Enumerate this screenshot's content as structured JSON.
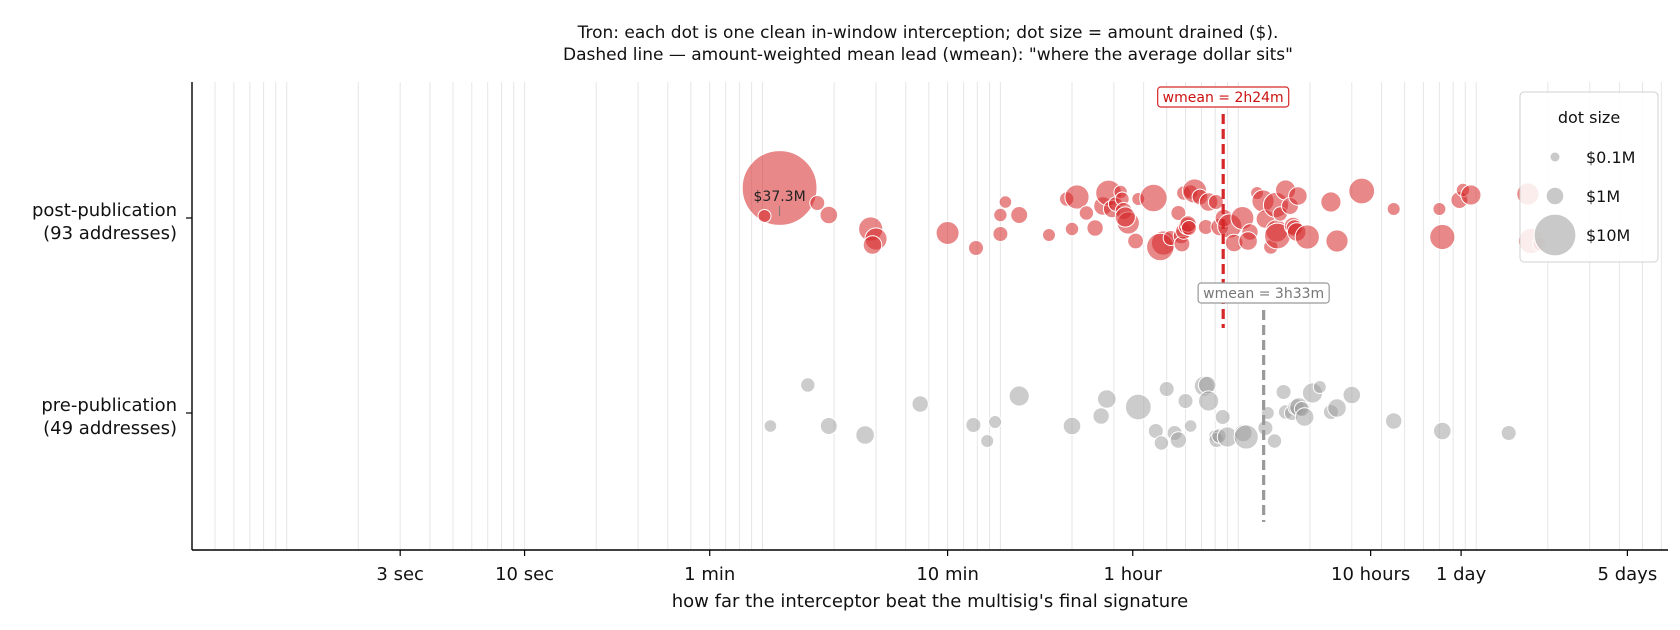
{
  "chart_data": {
    "type": "scatter",
    "title_lines": [
      "Tron: each dot is one clean in-window interception; dot size = amount drained ($).",
      "Dashed line — amount-weighted mean lead (wmean): \"where the average dollar sits\""
    ],
    "xlabel": "how far the interceptor beat the multisig's final signature",
    "x_scale": "log",
    "x_unit": "seconds",
    "xlim": [
      0.4,
      640000
    ],
    "x_ticks": [
      {
        "value": 3,
        "label": "3 sec"
      },
      {
        "value": 10,
        "label": "10 sec"
      },
      {
        "value": 60,
        "label": "1 min"
      },
      {
        "value": 600,
        "label": "10 min"
      },
      {
        "value": 3600,
        "label": "1 hour"
      },
      {
        "value": 36000,
        "label": "10 hours"
      },
      {
        "value": 86400,
        "label": "1 day"
      },
      {
        "value": 432000,
        "label": "5 days"
      }
    ],
    "grid": "vertical, log minor",
    "categories": [
      {
        "key": "post",
        "label_line1": "post-publication",
        "label_line2": "(93 addresses)"
      },
      {
        "key": "pre",
        "label_line1": "pre-publication",
        "label_line2": "(49 addresses)"
      }
    ],
    "legend": {
      "title": "dot size",
      "position": "top-right",
      "entries": [
        {
          "label": "$0.1M",
          "amount_musd": 0.1
        },
        {
          "label": "$1M",
          "amount_musd": 1
        },
        {
          "label": "$10M",
          "amount_musd": 10
        }
      ]
    },
    "series": [
      {
        "key": "post",
        "color": "#d62728",
        "wmean_seconds": 8640,
        "wmean_label": "wmean = 2h24m",
        "points": [
          {
            "lead": 118,
            "jitter": 0.3,
            "amount_musd": 37.3
          },
          {
            "lead": 102,
            "jitter": 0.02,
            "amount_musd": 0.35
          },
          {
            "lead": 170,
            "jitter": 0.15,
            "amount_musd": 0.6
          },
          {
            "lead": 190,
            "jitter": 0.03,
            "amount_musd": 1.0
          },
          {
            "lead": 285,
            "jitter": -0.11,
            "amount_musd": 2.5
          },
          {
            "lead": 300,
            "jitter": -0.21,
            "amount_musd": 2.0
          },
          {
            "lead": 290,
            "jitter": -0.27,
            "amount_musd": 1.2
          },
          {
            "lead": 600,
            "jitter": -0.15,
            "amount_musd": 2.2
          },
          {
            "lead": 790,
            "jitter": -0.3,
            "amount_musd": 0.6
          },
          {
            "lead": 1000,
            "jitter": 0.03,
            "amount_musd": 0.4
          },
          {
            "lead": 1050,
            "jitter": 0.16,
            "amount_musd": 0.3
          },
          {
            "lead": 1200,
            "jitter": 0.03,
            "amount_musd": 0.9
          },
          {
            "lead": 1000,
            "jitter": -0.16,
            "amount_musd": 0.6
          },
          {
            "lead": 1600,
            "jitter": -0.17,
            "amount_musd": 0.35
          },
          {
            "lead": 1900,
            "jitter": 0.19,
            "amount_musd": 0.5
          },
          {
            "lead": 2100,
            "jitter": 0.21,
            "amount_musd": 2.5
          },
          {
            "lead": 2000,
            "jitter": -0.11,
            "amount_musd": 0.4
          },
          {
            "lead": 2300,
            "jitter": 0.05,
            "amount_musd": 0.5
          },
          {
            "lead": 2500,
            "jitter": -0.1,
            "amount_musd": 0.8
          },
          {
            "lead": 2700,
            "jitter": 0.12,
            "amount_musd": 1.2
          },
          {
            "lead": 2850,
            "jitter": 0.25,
            "amount_musd": 3.0
          },
          {
            "lead": 2950,
            "jitter": 0.09,
            "amount_musd": 1.0
          },
          {
            "lead": 3050,
            "jitter": 0.14,
            "amount_musd": 0.5
          },
          {
            "lead": 3200,
            "jitter": 0.26,
            "amount_musd": 0.4
          },
          {
            "lead": 3250,
            "jitter": 0.19,
            "amount_musd": 0.45
          },
          {
            "lead": 3300,
            "jitter": 0.07,
            "amount_musd": 0.9
          },
          {
            "lead": 3450,
            "jitter": -0.05,
            "amount_musd": 2.0
          },
          {
            "lead": 3350,
            "jitter": 0.01,
            "amount_musd": 1.5
          },
          {
            "lead": 3700,
            "jitter": -0.23,
            "amount_musd": 0.7
          },
          {
            "lead": 3800,
            "jitter": 0.19,
            "amount_musd": 0.35
          },
          {
            "lead": 4400,
            "jitter": 0.2,
            "amount_musd": 3.5
          },
          {
            "lead": 4850,
            "jitter": -0.25,
            "amount_musd": 2.5
          },
          {
            "lead": 4700,
            "jitter": -0.29,
            "amount_musd": 3.5
          },
          {
            "lead": 5200,
            "jitter": -0.2,
            "amount_musd": 0.6
          },
          {
            "lead": 5600,
            "jitter": 0.05,
            "amount_musd": 0.6
          },
          {
            "lead": 5900,
            "jitter": 0.25,
            "amount_musd": 0.5
          },
          {
            "lead": 5750,
            "jitter": -0.18,
            "amount_musd": 0.7
          },
          {
            "lead": 5800,
            "jitter": -0.26,
            "amount_musd": 0.7
          },
          {
            "lead": 5900,
            "jitter": -0.13,
            "amount_musd": 0.8
          },
          {
            "lead": 6100,
            "jitter": -0.08,
            "amount_musd": 1.0
          },
          {
            "lead": 6150,
            "jitter": -0.06,
            "amount_musd": 0.8
          },
          {
            "lead": 6300,
            "jitter": 0.26,
            "amount_musd": 0.5
          },
          {
            "lead": 6550,
            "jitter": 0.27,
            "amount_musd": 2.5
          },
          {
            "lead": 6200,
            "jitter": -0.1,
            "amount_musd": 0.6
          },
          {
            "lead": 6900,
            "jitter": 0.21,
            "amount_musd": 0.7
          },
          {
            "lead": 7300,
            "jitter": -0.09,
            "amount_musd": 0.6
          },
          {
            "lead": 7500,
            "jitter": 0.16,
            "amount_musd": 1.2
          },
          {
            "lead": 8050,
            "jitter": 0.16,
            "amount_musd": 0.6
          },
          {
            "lead": 8350,
            "jitter": -0.09,
            "amount_musd": 1.0
          },
          {
            "lead": 8700,
            "jitter": 0.0,
            "amount_musd": 1.0
          },
          {
            "lead": 9200,
            "jitter": -0.08,
            "amount_musd": 2.5
          },
          {
            "lead": 9600,
            "jitter": -0.25,
            "amount_musd": 1.0
          },
          {
            "lead": 10400,
            "jitter": 0.0,
            "amount_musd": 2.2
          },
          {
            "lead": 11200,
            "jitter": -0.14,
            "amount_musd": 0.8
          },
          {
            "lead": 11000,
            "jitter": -0.23,
            "amount_musd": 1.2
          },
          {
            "lead": 12000,
            "jitter": 0.25,
            "amount_musd": 0.35
          },
          {
            "lead": 12700,
            "jitter": 0.17,
            "amount_musd": 2.0
          },
          {
            "lead": 13000,
            "jitter": -0.01,
            "amount_musd": 1.2
          },
          {
            "lead": 13700,
            "jitter": -0.29,
            "amount_musd": 0.5
          },
          {
            "lead": 14400,
            "jitter": 0.13,
            "amount_musd": 2.8
          },
          {
            "lead": 14500,
            "jitter": -0.13,
            "amount_musd": 2.0
          },
          {
            "lead": 14600,
            "jitter": -0.18,
            "amount_musd": 3.0
          },
          {
            "lead": 15000,
            "jitter": 0.04,
            "amount_musd": 0.5
          },
          {
            "lead": 15800,
            "jitter": 0.28,
            "amount_musd": 1.5
          },
          {
            "lead": 16500,
            "jitter": 0.12,
            "amount_musd": 0.9
          },
          {
            "lead": 17000,
            "jitter": -0.08,
            "amount_musd": 1.0
          },
          {
            "lead": 17200,
            "jitter": -0.1,
            "amount_musd": 0.8
          },
          {
            "lead": 17600,
            "jitter": -0.14,
            "amount_musd": 1.2
          },
          {
            "lead": 17800,
            "jitter": 0.22,
            "amount_musd": 1.2
          },
          {
            "lead": 19500,
            "jitter": -0.19,
            "amount_musd": 2.5
          },
          {
            "lead": 24500,
            "jitter": 0.16,
            "amount_musd": 1.5
          },
          {
            "lead": 26000,
            "jitter": -0.23,
            "amount_musd": 2.0
          },
          {
            "lead": 33000,
            "jitter": 0.27,
            "amount_musd": 3.0
          },
          {
            "lead": 45000,
            "jitter": 0.09,
            "amount_musd": 0.35
          },
          {
            "lead": 70000,
            "jitter": 0.09,
            "amount_musd": 0.35
          },
          {
            "lead": 72000,
            "jitter": -0.19,
            "amount_musd": 2.8
          },
          {
            "lead": 85000,
            "jitter": 0.18,
            "amount_musd": 0.9
          },
          {
            "lead": 88000,
            "jitter": 0.28,
            "amount_musd": 0.4
          },
          {
            "lead": 95000,
            "jitter": 0.23,
            "amount_musd": 1.5
          },
          {
            "lead": 165000,
            "jitter": 0.24,
            "amount_musd": 2.0
          },
          {
            "lead": 170000,
            "jitter": -0.23,
            "amount_musd": 2.8
          },
          {
            "lead": 185000,
            "jitter": -0.26,
            "amount_musd": 0.5
          }
        ]
      },
      {
        "key": "pre",
        "color": "#999999",
        "wmean_seconds": 12780,
        "wmean_label": "wmean = 3h33m",
        "points": [
          {
            "lead": 108,
            "jitter": -0.13,
            "amount_musd": 0.3
          },
          {
            "lead": 155,
            "jitter": 0.28,
            "amount_musd": 0.5
          },
          {
            "lead": 190,
            "jitter": -0.13,
            "amount_musd": 0.9
          },
          {
            "lead": 270,
            "jitter": -0.22,
            "amount_musd": 1.2
          },
          {
            "lead": 460,
            "jitter": 0.09,
            "amount_musd": 0.8
          },
          {
            "lead": 770,
            "jitter": -0.12,
            "amount_musd": 0.6
          },
          {
            "lead": 880,
            "jitter": -0.28,
            "amount_musd": 0.35
          },
          {
            "lead": 950,
            "jitter": -0.09,
            "amount_musd": 0.35
          },
          {
            "lead": 1200,
            "jitter": 0.17,
            "amount_musd": 1.5
          },
          {
            "lead": 2000,
            "jitter": -0.13,
            "amount_musd": 1.0
          },
          {
            "lead": 2650,
            "jitter": -0.03,
            "amount_musd": 0.8
          },
          {
            "lead": 2800,
            "jitter": 0.14,
            "amount_musd": 1.2
          },
          {
            "lead": 3800,
            "jitter": 0.06,
            "amount_musd": 3.0
          },
          {
            "lead": 4500,
            "jitter": -0.18,
            "amount_musd": 0.6
          },
          {
            "lead": 4750,
            "jitter": -0.3,
            "amount_musd": 0.5
          },
          {
            "lead": 5000,
            "jitter": 0.24,
            "amount_musd": 0.6
          },
          {
            "lead": 5400,
            "jitter": -0.2,
            "amount_musd": 0.6
          },
          {
            "lead": 5600,
            "jitter": -0.27,
            "amount_musd": 0.8
          },
          {
            "lead": 6000,
            "jitter": 0.12,
            "amount_musd": 0.6
          },
          {
            "lead": 6300,
            "jitter": -0.13,
            "amount_musd": 0.3
          },
          {
            "lead": 7200,
            "jitter": 0.27,
            "amount_musd": 1.5
          },
          {
            "lead": 7400,
            "jitter": 0.28,
            "amount_musd": 1.0
          },
          {
            "lead": 7500,
            "jitter": 0.12,
            "amount_musd": 1.5
          },
          {
            "lead": 8000,
            "jitter": -0.23,
            "amount_musd": 0.35
          },
          {
            "lead": 8100,
            "jitter": -0.27,
            "amount_musd": 0.6
          },
          {
            "lead": 8300,
            "jitter": -0.23,
            "amount_musd": 0.5
          },
          {
            "lead": 8600,
            "jitter": -0.04,
            "amount_musd": 0.6
          },
          {
            "lead": 9000,
            "jitter": -0.24,
            "amount_musd": 1.5
          },
          {
            "lead": 10500,
            "jitter": -0.2,
            "amount_musd": 1.0
          },
          {
            "lead": 10800,
            "jitter": -0.24,
            "amount_musd": 2.5
          },
          {
            "lead": 13300,
            "jitter": 0.0,
            "amount_musd": 0.35
          },
          {
            "lead": 13000,
            "jitter": -0.15,
            "amount_musd": 0.6
          },
          {
            "lead": 14200,
            "jitter": -0.28,
            "amount_musd": 0.5
          },
          {
            "lead": 15500,
            "jitter": 0.21,
            "amount_musd": 0.6
          },
          {
            "lead": 15800,
            "jitter": 0.01,
            "amount_musd": 0.5
          },
          {
            "lead": 16800,
            "jitter": 0.0,
            "amount_musd": 0.6
          },
          {
            "lead": 17500,
            "jitter": 0.06,
            "amount_musd": 0.8
          },
          {
            "lead": 18000,
            "jitter": 0.06,
            "amount_musd": 1.2
          },
          {
            "lead": 18500,
            "jitter": 0.04,
            "amount_musd": 0.6
          },
          {
            "lead": 19000,
            "jitter": -0.04,
            "amount_musd": 1.2
          },
          {
            "lead": 20500,
            "jitter": 0.2,
            "amount_musd": 1.5
          },
          {
            "lead": 22000,
            "jitter": 0.26,
            "amount_musd": 0.35
          },
          {
            "lead": 24500,
            "jitter": 0.01,
            "amount_musd": 0.6
          },
          {
            "lead": 26000,
            "jitter": 0.05,
            "amount_musd": 1.2
          },
          {
            "lead": 30000,
            "jitter": 0.18,
            "amount_musd": 1.0
          },
          {
            "lead": 45000,
            "jitter": -0.08,
            "amount_musd": 0.8
          },
          {
            "lead": 72000,
            "jitter": -0.18,
            "amount_musd": 1.0
          },
          {
            "lead": 137000,
            "jitter": -0.2,
            "amount_musd": 0.6
          }
        ]
      }
    ],
    "annotations": [
      {
        "series": "post",
        "point_index": 0,
        "label": "$37.3M"
      }
    ]
  }
}
